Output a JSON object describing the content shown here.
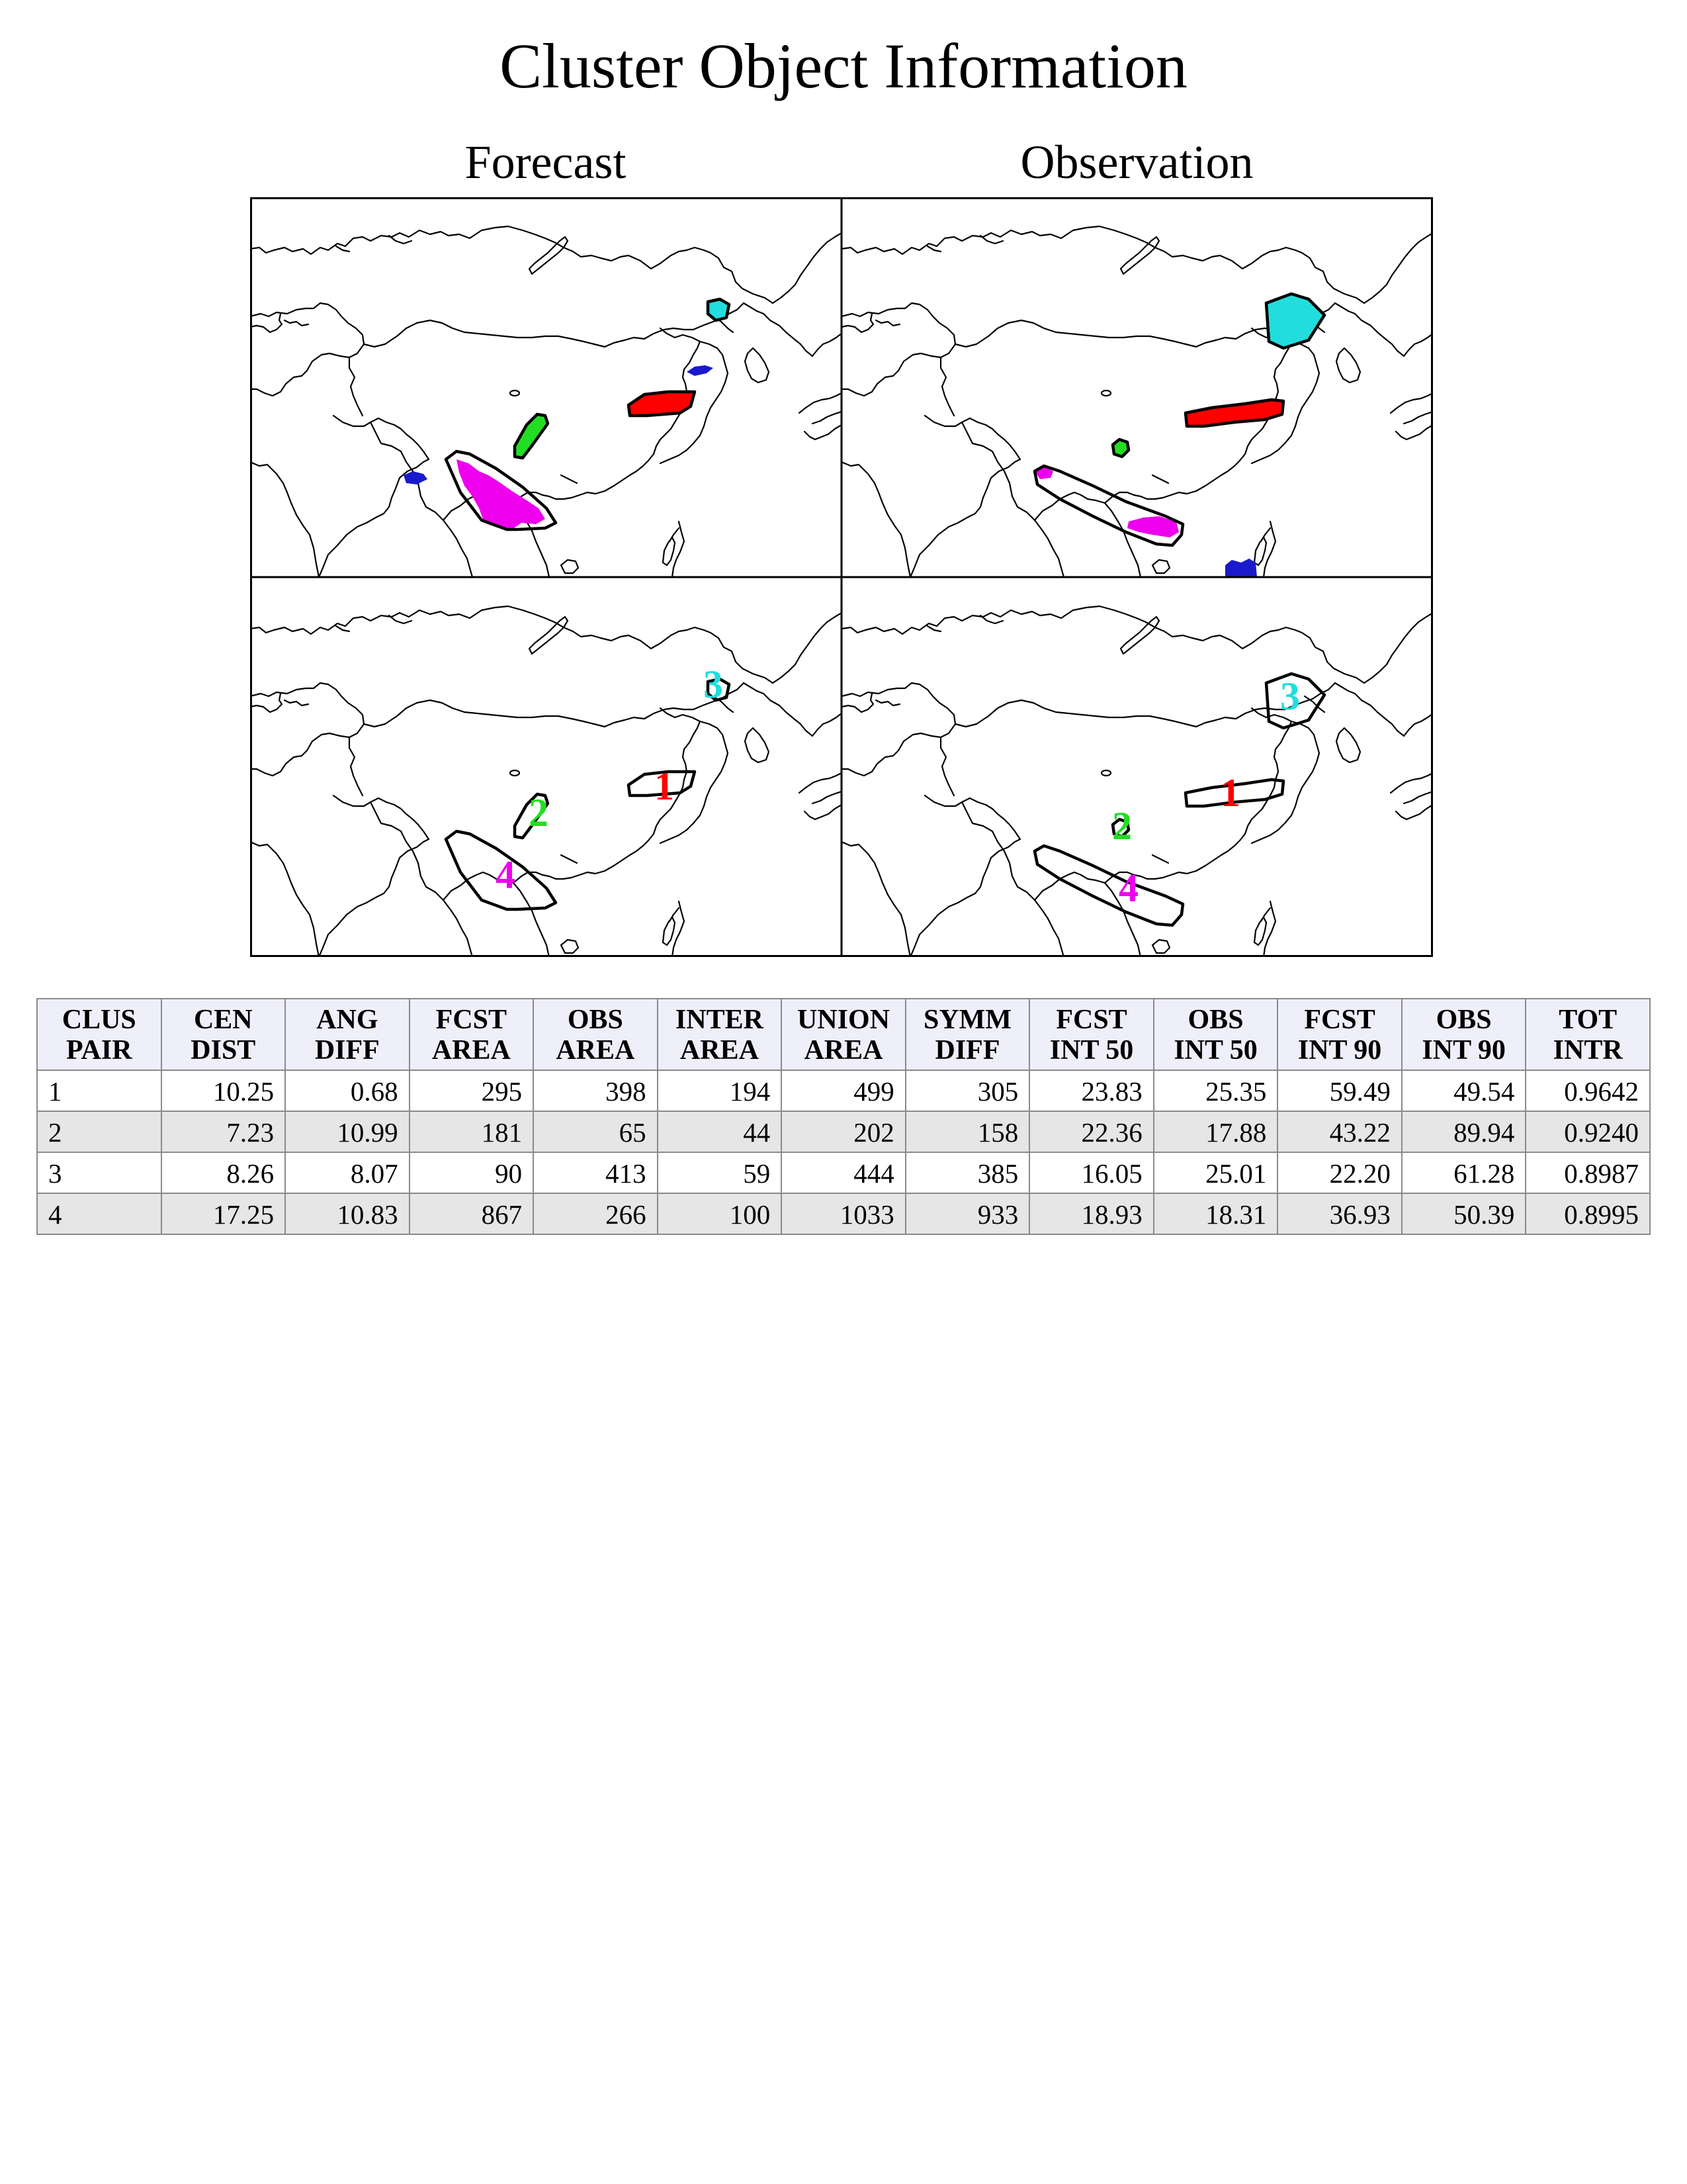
{
  "title": "Cluster Object Information",
  "panels": {
    "forecast_title": "Forecast",
    "observation_title": "Observation"
  },
  "colors": {
    "cluster_1": "#ff0000",
    "cluster_2": "#22dd22",
    "cluster_3": "#22dddd",
    "cluster_4": "#ee00ee",
    "unmatched": "#1a1acc"
  },
  "cluster_labels": [
    "1",
    "2",
    "3",
    "4"
  ],
  "table": {
    "headers": [
      [
        "CLUS",
        "PAIR"
      ],
      [
        "CEN",
        "DIST"
      ],
      [
        "ANG",
        "DIFF"
      ],
      [
        "FCST",
        "AREA"
      ],
      [
        "OBS",
        "AREA"
      ],
      [
        "INTER",
        "AREA"
      ],
      [
        "UNION",
        "AREA"
      ],
      [
        "SYMM",
        "DIFF"
      ],
      [
        "FCST",
        "INT 50"
      ],
      [
        "OBS",
        "INT 50"
      ],
      [
        "FCST",
        "INT 90"
      ],
      [
        "OBS",
        "INT 90"
      ],
      [
        "TOT",
        "INTR"
      ]
    ],
    "rows": [
      [
        "1",
        "10.25",
        "0.68",
        "295",
        "398",
        "194",
        "499",
        "305",
        "23.83",
        "25.35",
        "59.49",
        "49.54",
        "0.9642"
      ],
      [
        "2",
        "7.23",
        "10.99",
        "181",
        "65",
        "44",
        "202",
        "158",
        "22.36",
        "17.88",
        "43.22",
        "89.94",
        "0.9240"
      ],
      [
        "3",
        "8.26",
        "8.07",
        "90",
        "413",
        "59",
        "444",
        "385",
        "16.05",
        "25.01",
        "22.20",
        "61.28",
        "0.8987"
      ],
      [
        "4",
        "17.25",
        "10.83",
        "867",
        "266",
        "100",
        "1033",
        "933",
        "18.93",
        "18.31",
        "36.93",
        "50.39",
        "0.8995"
      ]
    ]
  }
}
